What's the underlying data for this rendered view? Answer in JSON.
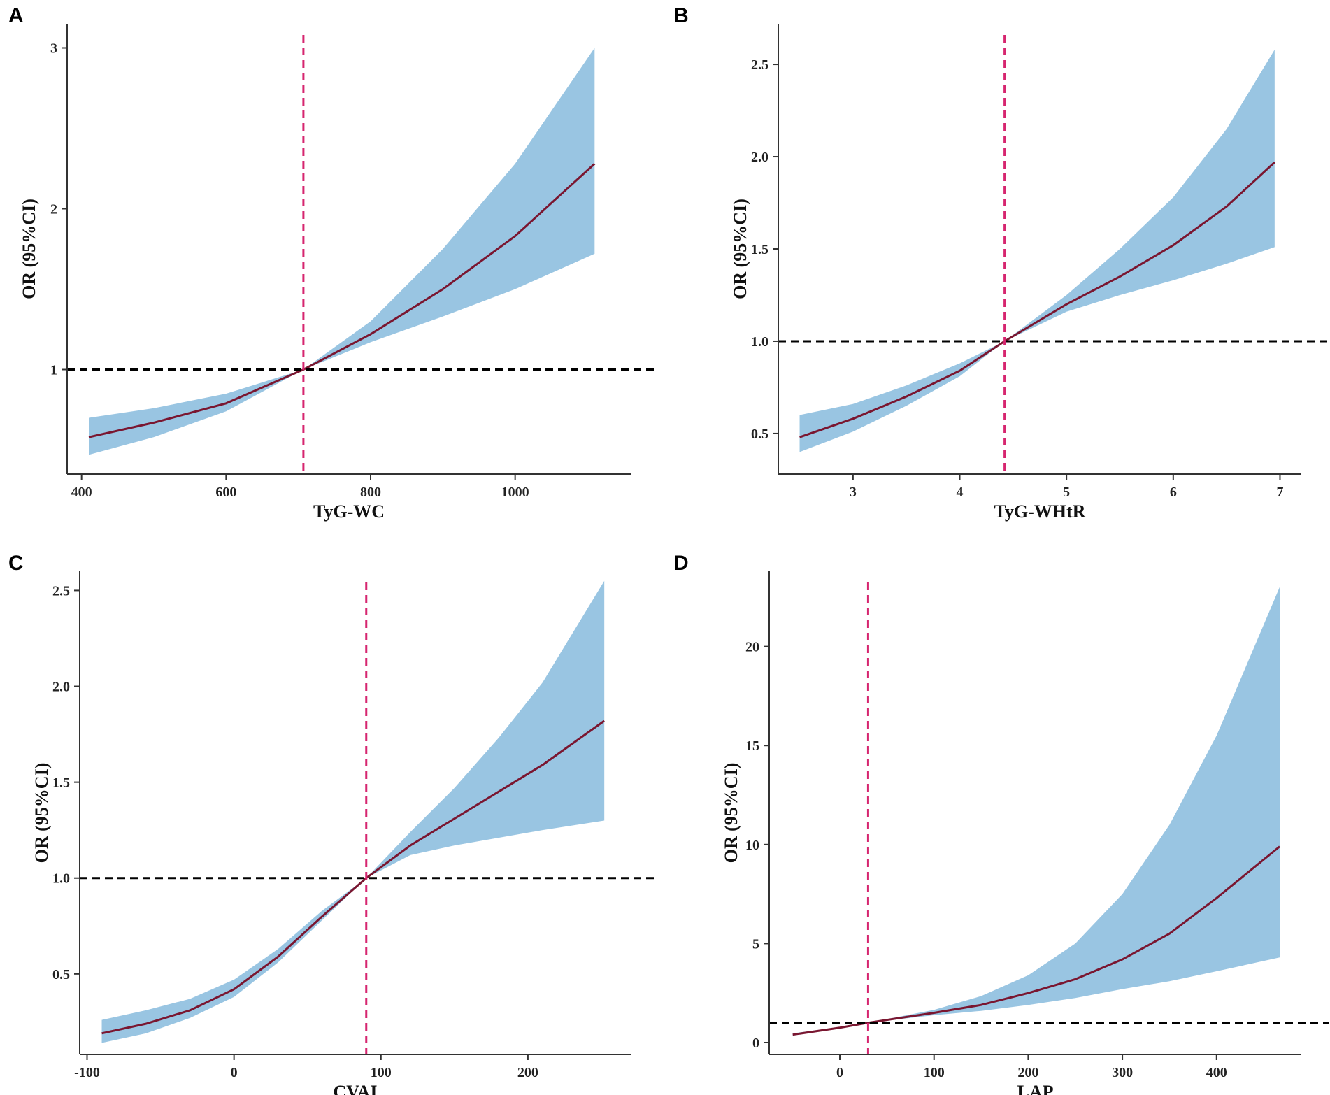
{
  "figure": {
    "colors": {
      "ci_band": "#99c5e2",
      "curve": "#7a1630",
      "ref_vline": "#d6256f",
      "ref_hline": "#000000",
      "axis": "#333333"
    }
  },
  "chart_data": [
    {
      "panel": "A",
      "type": "area",
      "title": "",
      "xlabel": "TyG-WC",
      "ylabel": "OR (95%CI)",
      "xlim": [
        380,
        1160
      ],
      "ylim": [
        0.35,
        3.15
      ],
      "xticks": [
        400,
        600,
        800,
        1000
      ],
      "xtick_labels": [
        "400",
        "600",
        "800",
        "1000"
      ],
      "yticks": [
        1,
        2,
        3
      ],
      "ytick_labels": [
        "1",
        "2",
        "3"
      ],
      "ref_x": 707,
      "ref_y": 1.0,
      "series": [
        {
          "name": "OR",
          "x": [
            410,
            500,
            600,
            707,
            800,
            900,
            1000,
            1110
          ],
          "values": [
            0.58,
            0.67,
            0.79,
            1.0,
            1.22,
            1.5,
            1.83,
            2.28
          ]
        },
        {
          "name": "CI lower",
          "x": [
            410,
            500,
            600,
            707,
            800,
            900,
            1000,
            1110
          ],
          "values": [
            0.47,
            0.58,
            0.74,
            1.0,
            1.17,
            1.33,
            1.5,
            1.72
          ]
        },
        {
          "name": "CI upper",
          "x": [
            410,
            500,
            600,
            707,
            800,
            900,
            1000,
            1110
          ],
          "values": [
            0.7,
            0.76,
            0.85,
            1.0,
            1.3,
            1.75,
            2.28,
            3.0
          ]
        }
      ]
    },
    {
      "panel": "B",
      "type": "area",
      "title": "",
      "xlabel": "TyG-WHtR",
      "ylabel": "OR (95%CI)",
      "xlim": [
        2.3,
        7.2
      ],
      "ylim": [
        0.28,
        2.72
      ],
      "xticks": [
        3,
        4,
        5,
        6,
        7
      ],
      "xtick_labels": [
        "3",
        "4",
        "5",
        "6",
        "7"
      ],
      "yticks": [
        0.5,
        1.0,
        1.5,
        2.0,
        2.5
      ],
      "ytick_labels": [
        "0.5",
        "1.0",
        "1.5",
        "2.0",
        "2.5"
      ],
      "ref_x": 4.42,
      "ref_y": 1.0,
      "series": [
        {
          "name": "OR",
          "x": [
            2.5,
            3.0,
            3.5,
            4.0,
            4.42,
            5.0,
            5.5,
            6.0,
            6.5,
            6.95
          ],
          "values": [
            0.48,
            0.58,
            0.7,
            0.84,
            1.0,
            1.2,
            1.35,
            1.52,
            1.73,
            1.97
          ]
        },
        {
          "name": "CI lower",
          "x": [
            2.5,
            3.0,
            3.5,
            4.0,
            4.42,
            5.0,
            5.5,
            6.0,
            6.5,
            6.95
          ],
          "values": [
            0.4,
            0.51,
            0.65,
            0.81,
            1.0,
            1.16,
            1.25,
            1.33,
            1.42,
            1.51
          ]
        },
        {
          "name": "CI upper",
          "x": [
            2.5,
            3.0,
            3.5,
            4.0,
            4.42,
            5.0,
            5.5,
            6.0,
            6.5,
            6.95
          ],
          "values": [
            0.6,
            0.66,
            0.76,
            0.88,
            1.0,
            1.25,
            1.5,
            1.78,
            2.15,
            2.58
          ]
        }
      ]
    },
    {
      "panel": "C",
      "type": "area",
      "title": "",
      "xlabel": "CVAI",
      "ylabel": "OR (95%CI)",
      "xlim": [
        -105,
        270
      ],
      "ylim": [
        0.08,
        2.6
      ],
      "xticks": [
        -100,
        0,
        100,
        200
      ],
      "xtick_labels": [
        "-100",
        "0",
        "100",
        "200"
      ],
      "yticks": [
        0.5,
        1.0,
        1.5,
        2.0,
        2.5
      ],
      "ytick_labels": [
        "0.5",
        "1.0",
        "1.5",
        "2.0",
        "2.5"
      ],
      "ref_x": 90,
      "ref_y": 1.0,
      "series": [
        {
          "name": "OR",
          "x": [
            -90,
            -60,
            -30,
            0,
            30,
            60,
            90,
            120,
            150,
            180,
            210,
            252
          ],
          "values": [
            0.19,
            0.24,
            0.31,
            0.42,
            0.59,
            0.8,
            1.0,
            1.17,
            1.31,
            1.45,
            1.59,
            1.82
          ]
        },
        {
          "name": "CI lower",
          "x": [
            -90,
            -60,
            -30,
            0,
            30,
            60,
            90,
            120,
            150,
            180,
            210,
            252
          ],
          "values": [
            0.14,
            0.19,
            0.27,
            0.38,
            0.56,
            0.78,
            1.0,
            1.12,
            1.17,
            1.21,
            1.25,
            1.3
          ]
        },
        {
          "name": "CI upper",
          "x": [
            -90,
            -60,
            -30,
            0,
            30,
            60,
            90,
            120,
            150,
            180,
            210,
            252
          ],
          "values": [
            0.26,
            0.31,
            0.37,
            0.47,
            0.63,
            0.83,
            1.0,
            1.24,
            1.47,
            1.73,
            2.02,
            2.55
          ]
        }
      ]
    },
    {
      "panel": "D",
      "type": "area",
      "title": "",
      "xlabel": "LAP",
      "ylabel": "OR (95%CI)",
      "xlim": [
        -75,
        490
      ],
      "ylim": [
        -0.6,
        23.8
      ],
      "xticks": [
        0,
        100,
        200,
        300,
        400
      ],
      "xtick_labels": [
        "0",
        "100",
        "200",
        "300",
        "400"
      ],
      "yticks": [
        0,
        5,
        10,
        15,
        20
      ],
      "ytick_labels": [
        "0",
        "5",
        "10",
        "15",
        "20"
      ],
      "ref_x": 30,
      "ref_y": 1.0,
      "series": [
        {
          "name": "OR",
          "x": [
            -50,
            0,
            30,
            100,
            150,
            200,
            250,
            300,
            350,
            400,
            467
          ],
          "values": [
            0.4,
            0.75,
            1.0,
            1.5,
            1.9,
            2.5,
            3.2,
            4.2,
            5.5,
            7.3,
            9.9
          ]
        },
        {
          "name": "CI lower",
          "x": [
            -50,
            0,
            30,
            100,
            150,
            200,
            250,
            300,
            350,
            400,
            467
          ],
          "values": [
            0.35,
            0.72,
            1.0,
            1.38,
            1.6,
            1.9,
            2.25,
            2.7,
            3.1,
            3.6,
            4.3
          ]
        },
        {
          "name": "CI upper",
          "x": [
            -50,
            0,
            30,
            100,
            150,
            200,
            250,
            300,
            350,
            400,
            467
          ],
          "values": [
            0.47,
            0.78,
            1.0,
            1.65,
            2.35,
            3.4,
            5.0,
            7.5,
            11.0,
            15.5,
            23.0
          ]
        }
      ]
    }
  ]
}
